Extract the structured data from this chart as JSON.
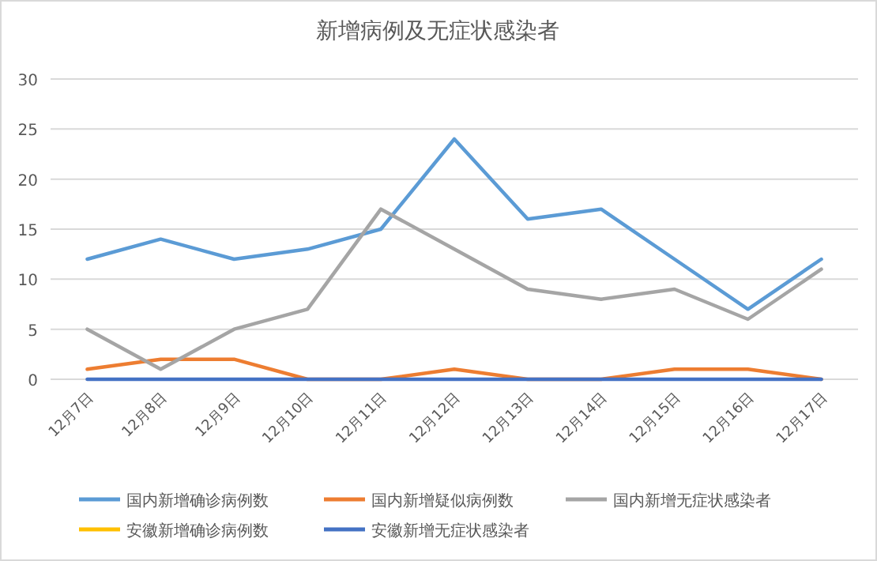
{
  "chart_data": {
    "type": "line",
    "title": "新增病例及无症状感染者",
    "categories": [
      "12月7日",
      "12月8日",
      "12月9日",
      "12月10日",
      "12月11日",
      "12月12日",
      "12月13日",
      "12月14日",
      "12月15日",
      "12月16日",
      "12月17日"
    ],
    "series": [
      {
        "name": "国内新增确诊病例数",
        "color": "#5b9bd5",
        "values": [
          12,
          14,
          12,
          13,
          15,
          24,
          16,
          17,
          12,
          7,
          12
        ]
      },
      {
        "name": "国内新增疑似病例数",
        "color": "#ed7d31",
        "values": [
          1,
          2,
          2,
          0,
          0,
          1,
          0,
          0,
          1,
          1,
          0
        ]
      },
      {
        "name": "国内新增无症状感染者",
        "color": "#a5a5a5",
        "values": [
          5,
          1,
          5,
          7,
          17,
          13,
          9,
          8,
          9,
          6,
          11
        ]
      },
      {
        "name": "安徽新增确诊病例数",
        "color": "#ffc000",
        "values": [
          null,
          null,
          null,
          null,
          null,
          null,
          null,
          null,
          null,
          null,
          null
        ]
      },
      {
        "name": "安徽新增无症状感染者",
        "color": "#4472c4",
        "values": [
          0,
          0,
          0,
          0,
          0,
          0,
          0,
          0,
          0,
          0,
          0
        ]
      }
    ],
    "ylim": [
      0,
      30
    ],
    "yticks": [
      0,
      5,
      10,
      15,
      20,
      25,
      30
    ],
    "grid": "y",
    "legend": "bottom",
    "marker": "none",
    "line_style": "solid"
  }
}
